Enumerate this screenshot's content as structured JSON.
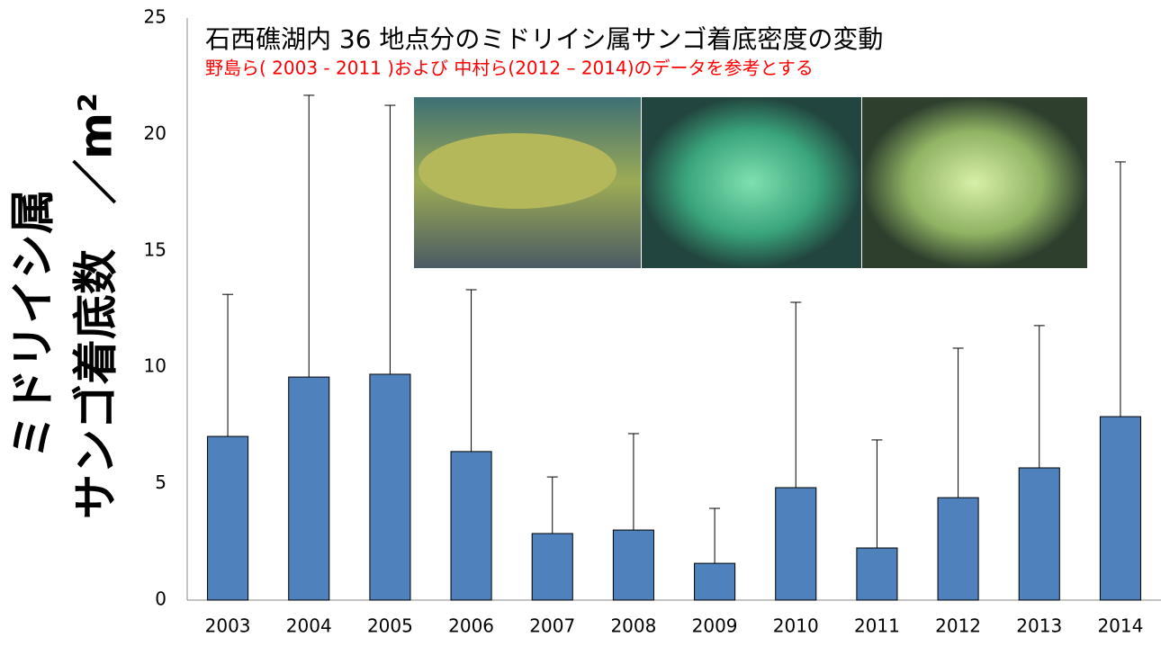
{
  "chart_data": {
    "type": "bar",
    "title": "石西礁湖内 36 地点分のミドリイシ属サンゴ着底密度の変動",
    "subtitle": "野島ら( 2003 - 2011 )および 中村ら(2012 – 2014)のデータを参考とする",
    "ylabel": [
      "ミドリイシ属",
      "サンゴ着底数　／m²"
    ],
    "categories": [
      "2003",
      "2004",
      "2005",
      "2006",
      "2007",
      "2008",
      "2009",
      "2010",
      "2011",
      "2012",
      "2013",
      "2014"
    ],
    "values": [
      7.03,
      9.58,
      9.7,
      6.38,
      2.86,
      3.01,
      1.58,
      4.83,
      2.24,
      4.4,
      5.68,
      7.88
    ],
    "errors": [
      6.1,
      12.1,
      11.55,
      6.95,
      2.43,
      4.14,
      2.36,
      7.96,
      4.64,
      6.42,
      6.11,
      10.94
    ],
    "color": "#4f81bd",
    "ylim": [
      0,
      25
    ],
    "yticks": [
      0,
      5,
      10,
      15,
      20,
      25
    ],
    "grid": false
  }
}
